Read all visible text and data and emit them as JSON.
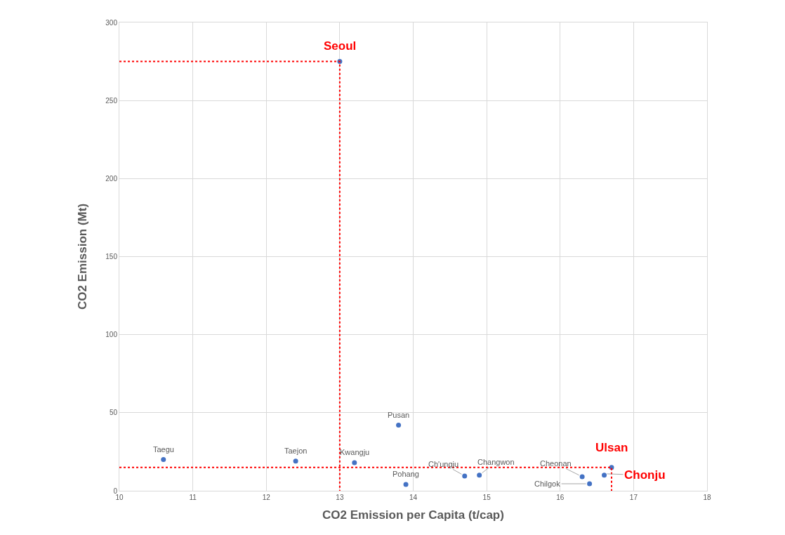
{
  "chart_data": {
    "type": "scatter",
    "xlabel": "CO2 Emission per Capita (t/cap)",
    "ylabel": "CO2 Emission (Mt)",
    "xlim": [
      10,
      18
    ],
    "xticks": [
      10,
      11,
      12,
      13,
      14,
      15,
      16,
      17,
      18
    ],
    "ylim": [
      0,
      300
    ],
    "yticks": [
      0,
      50,
      100,
      150,
      200,
      250,
      300
    ],
    "grid": true,
    "marker": "circle",
    "series": [
      {
        "color": "#4472c4",
        "x": [
          10.6,
          12.4,
          13.2,
          13.8,
          13.9,
          14.7,
          14.9,
          16.3,
          16.4
        ],
        "values": [
          20,
          19,
          18,
          42,
          4,
          9.5,
          10,
          9,
          4.5
        ]
      },
      {
        "name": "Seoul",
        "color": "#4472c4",
        "x": [
          13
        ],
        "values": [
          275
        ]
      },
      {
        "name": "Ulsan",
        "color": "#4472c4",
        "x": [
          16.7
        ],
        "values": [
          15
        ]
      },
      {
        "name": "Chonju",
        "color": "#4472c4",
        "x": [
          16.6
        ],
        "values": [
          10
        ]
      },
      {
        "type": "line",
        "color": "#ff0000",
        "line_style": "dotted",
        "marker": "none",
        "x": [
          10,
          13,
          13
        ],
        "values": [
          275,
          275,
          0
        ]
      },
      {
        "type": "line",
        "color": "#ff0000",
        "line_style": "dotted",
        "marker": "none",
        "x": [
          10,
          16.7,
          16.7
        ],
        "values": [
          15,
          15,
          0
        ]
      }
    ],
    "annotations": [
      {
        "text": "Taegu",
        "x": 10.6,
        "y": 20
      },
      {
        "text": "Taejon",
        "x": 12.4,
        "y": 19
      },
      {
        "text": "Kwangju",
        "x": 13.2,
        "y": 18
      },
      {
        "text": "Pusan",
        "x": 13.8,
        "y": 42
      },
      {
        "text": "Pohang",
        "x": 13.9,
        "y": 4
      },
      {
        "text": "Ch'ungju",
        "x": 14.7,
        "y": 9.5
      },
      {
        "text": "Changwon",
        "x": 14.9,
        "y": 10
      },
      {
        "text": "Cheonan",
        "x": 16.3,
        "y": 9
      },
      {
        "text": "Chilgok",
        "x": 16.4,
        "y": 4.5
      }
    ]
  }
}
